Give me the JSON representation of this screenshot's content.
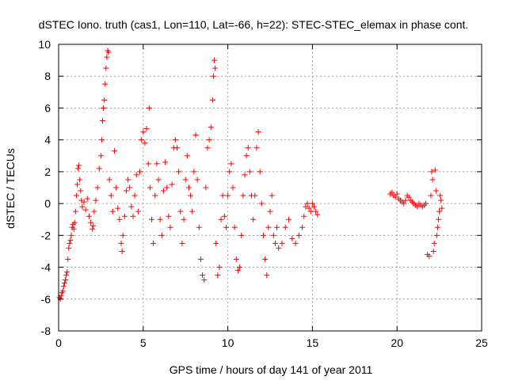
{
  "chart_data": {
    "type": "scatter",
    "title": "dSTEC Iono. truth (cas1, Lon=110, Lat=-66, h=22): STEC-STEC_elemax in phase cont.",
    "xlabel": "GPS time / hours of day 141 of year 2011",
    "ylabel": "dSTEC  / TECUs",
    "xlim": [
      0,
      25
    ],
    "ylim": [
      -8,
      10
    ],
    "xticks": [
      "0",
      "5",
      "10",
      "15",
      "20",
      "25"
    ],
    "yticks": [
      "-8",
      "-6",
      "-4",
      "-2",
      "0",
      "2",
      "4",
      "6",
      "8",
      "10"
    ],
    "grid": true,
    "marker": "+",
    "color": "#ff0000",
    "series": [
      {
        "points": [
          [
            0.05,
            -5.9
          ],
          [
            0.1,
            -6.0
          ],
          [
            0.15,
            -5.8
          ],
          [
            0.2,
            -5.6
          ],
          [
            0.25,
            -5.5
          ],
          [
            0.3,
            -5.2
          ],
          [
            0.35,
            -5.0
          ],
          [
            0.4,
            -4.8
          ],
          [
            0.45,
            -4.5
          ],
          [
            0.5,
            -4.3
          ],
          [
            0.55,
            -3.5
          ],
          [
            0.6,
            -2.8
          ],
          [
            0.65,
            -2.5
          ],
          [
            0.7,
            -2.3
          ],
          [
            0.75,
            -2.0
          ],
          [
            0.8,
            -1.5
          ],
          [
            0.85,
            -1.3
          ],
          [
            0.9,
            -1.6
          ],
          [
            0.95,
            -1.2
          ],
          [
            1.0,
            -0.5
          ],
          [
            1.05,
            0.5
          ],
          [
            1.1,
            1.2
          ],
          [
            1.15,
            2.2
          ],
          [
            1.2,
            2.4
          ],
          [
            1.25,
            1.5
          ],
          [
            1.3,
            0.8
          ],
          [
            1.35,
            0.2
          ],
          [
            1.4,
            -0.2
          ],
          [
            1.5,
            0.1
          ],
          [
            1.6,
            -0.4
          ],
          [
            1.7,
            0.3
          ],
          [
            1.8,
            -0.8
          ],
          [
            1.9,
            -1.2
          ],
          [
            2.0,
            -1.6
          ],
          [
            2.05,
            -1.4
          ],
          [
            2.1,
            -0.5
          ],
          [
            2.2,
            0.2
          ],
          [
            2.3,
            1.0
          ],
          [
            2.4,
            2.2
          ],
          [
            2.5,
            3.0
          ],
          [
            2.55,
            4.0
          ],
          [
            2.6,
            5.2
          ],
          [
            2.65,
            6.0
          ],
          [
            2.7,
            6.5
          ],
          [
            2.75,
            7.5
          ],
          [
            2.8,
            8.5
          ],
          [
            2.85,
            9.2
          ],
          [
            2.9,
            9.6
          ],
          [
            2.95,
            9.5
          ],
          [
            3.0,
            1.5
          ],
          [
            3.1,
            0.5
          ],
          [
            3.2,
            -0.5
          ],
          [
            3.3,
            3.3
          ],
          [
            3.4,
            1.0
          ],
          [
            3.5,
            -0.3
          ],
          [
            3.6,
            -1.0
          ],
          [
            3.7,
            -2.5
          ],
          [
            3.75,
            -3.0
          ],
          [
            3.8,
            -2.0
          ],
          [
            3.9,
            -0.8
          ],
          [
            4.0,
            0.8
          ],
          [
            4.1,
            1.5
          ],
          [
            4.2,
            1.0
          ],
          [
            4.3,
            -0.2
          ],
          [
            4.4,
            -0.8
          ],
          [
            4.5,
            0.5
          ],
          [
            4.6,
            1.8
          ],
          [
            4.7,
            -0.5
          ],
          [
            4.8,
            2.0
          ],
          [
            4.9,
            4.0
          ],
          [
            5.0,
            4.5
          ],
          [
            5.1,
            3.8
          ],
          [
            5.2,
            4.7
          ],
          [
            5.3,
            2.5
          ],
          [
            5.35,
            6.0
          ],
          [
            5.4,
            1.0
          ],
          [
            5.5,
            -1.0
          ],
          [
            5.6,
            -2.5
          ],
          [
            5.7,
            0.5
          ],
          [
            5.8,
            2.5
          ],
          [
            5.9,
            1.5
          ],
          [
            6.0,
            -1.0
          ],
          [
            6.1,
            -2.0
          ],
          [
            6.2,
            0.8
          ],
          [
            6.3,
            2.6
          ],
          [
            6.4,
            1.0
          ],
          [
            6.5,
            -0.8
          ],
          [
            6.6,
            -1.5
          ],
          [
            6.7,
            1.2
          ],
          [
            6.8,
            3.5
          ],
          [
            6.9,
            4.0
          ],
          [
            7.0,
            3.5
          ],
          [
            7.1,
            2.0
          ],
          [
            7.2,
            -0.5
          ],
          [
            7.3,
            -2.5
          ],
          [
            7.4,
            -1.0
          ],
          [
            7.5,
            1.5
          ],
          [
            7.6,
            3.0
          ],
          [
            7.7,
            1.0
          ],
          [
            7.8,
            0.5
          ],
          [
            7.9,
            -0.5
          ],
          [
            8.0,
            2.0
          ],
          [
            8.1,
            4.3
          ],
          [
            8.2,
            1.5
          ],
          [
            8.3,
            -1.5
          ],
          [
            8.4,
            -3.5
          ],
          [
            8.5,
            -4.5
          ],
          [
            8.6,
            -4.8
          ],
          [
            8.7,
            1.0
          ],
          [
            8.8,
            3.5
          ],
          [
            8.9,
            4.0
          ],
          [
            9.0,
            4.8
          ],
          [
            9.1,
            6.5
          ],
          [
            9.15,
            8.0
          ],
          [
            9.2,
            9.0
          ],
          [
            9.25,
            8.5
          ],
          [
            9.3,
            -2.5
          ],
          [
            9.4,
            -4.5
          ],
          [
            9.5,
            -4.0
          ],
          [
            9.6,
            -1.0
          ],
          [
            9.7,
            0.5
          ],
          [
            9.8,
            -0.8
          ],
          [
            9.9,
            -1.5
          ],
          [
            10.0,
            0.5
          ],
          [
            10.1,
            2.0
          ],
          [
            10.2,
            2.5
          ],
          [
            10.3,
            1.0
          ],
          [
            10.4,
            -1.5
          ],
          [
            10.5,
            -3.5
          ],
          [
            10.6,
            -4.2
          ],
          [
            10.7,
            -4.0
          ],
          [
            10.8,
            -2.0
          ],
          [
            10.9,
            0.5
          ],
          [
            11.0,
            1.8
          ],
          [
            11.1,
            3.0
          ],
          [
            11.2,
            3.5
          ],
          [
            11.3,
            2.0
          ],
          [
            11.4,
            0.5
          ],
          [
            11.5,
            -1.0
          ],
          [
            11.6,
            0.5
          ],
          [
            11.7,
            3.5
          ],
          [
            11.8,
            4.5
          ],
          [
            11.9,
            2.0
          ],
          [
            12.0,
            0.0
          ],
          [
            12.1,
            -2.0
          ],
          [
            12.2,
            -3.5
          ],
          [
            12.3,
            -4.5
          ],
          [
            12.4,
            -1.5
          ],
          [
            12.5,
            -0.5
          ],
          [
            12.6,
            0.5
          ],
          [
            12.7,
            -2.0
          ],
          [
            12.8,
            -2.5
          ],
          [
            12.9,
            -1.5
          ],
          [
            13.0,
            -2.8
          ],
          [
            13.2,
            -2.5
          ],
          [
            13.4,
            -1.5
          ],
          [
            13.6,
            -1.0
          ],
          [
            13.8,
            -2.2
          ],
          [
            14.0,
            -2.5
          ],
          [
            14.2,
            -2.0
          ],
          [
            14.4,
            -1.5
          ],
          [
            14.5,
            -0.8
          ],
          [
            14.6,
            -0.2
          ],
          [
            14.7,
            0.0
          ],
          [
            14.8,
            -0.3
          ],
          [
            14.9,
            -0.5
          ],
          [
            15.0,
            0.0
          ],
          [
            15.1,
            -0.2
          ],
          [
            15.2,
            -0.5
          ],
          [
            15.3,
            -0.7
          ],
          [
            19.6,
            0.6
          ],
          [
            19.7,
            0.7
          ],
          [
            19.8,
            0.5
          ],
          [
            19.9,
            0.4
          ],
          [
            20.0,
            0.6
          ],
          [
            20.1,
            0.3
          ],
          [
            20.2,
            0.2
          ],
          [
            20.3,
            0.1
          ],
          [
            20.4,
            0.0
          ],
          [
            20.5,
            0.2
          ],
          [
            20.6,
            0.5
          ],
          [
            20.7,
            0.4
          ],
          [
            20.8,
            0.2
          ],
          [
            20.9,
            0.1
          ],
          [
            21.0,
            0.0
          ],
          [
            21.1,
            -0.1
          ],
          [
            21.2,
            -0.2
          ],
          [
            21.3,
            0.0
          ],
          [
            21.4,
            -0.1
          ],
          [
            21.5,
            -0.2
          ],
          [
            21.6,
            -0.1
          ],
          [
            21.7,
            0.0
          ],
          [
            21.8,
            -3.2
          ],
          [
            21.9,
            -3.3
          ],
          [
            22.0,
            0.5
          ],
          [
            22.05,
            2.0
          ],
          [
            22.1,
            1.5
          ],
          [
            22.15,
            -3.0
          ],
          [
            22.2,
            -2.5
          ],
          [
            22.25,
            2.1
          ],
          [
            22.3,
            0.8
          ],
          [
            22.35,
            -2.0
          ],
          [
            22.4,
            -1.5
          ],
          [
            22.45,
            -1.0
          ],
          [
            22.5,
            -0.5
          ],
          [
            22.55,
            0.5
          ],
          [
            22.6,
            0.2
          ],
          [
            22.65,
            -0.3
          ]
        ]
      }
    ]
  }
}
